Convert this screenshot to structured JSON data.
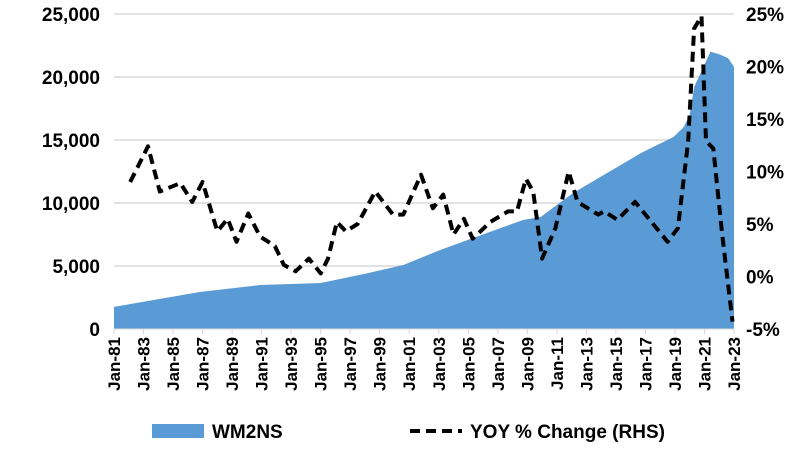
{
  "chart_data": {
    "type": "area",
    "title": "",
    "xlabel": "",
    "ylabel": "",
    "x_ticks": [
      "Jan-81",
      "Jan-83",
      "Jan-85",
      "Jan-87",
      "Jan-89",
      "Jan-91",
      "Jan-93",
      "Jan-95",
      "Jan-97",
      "Jan-99",
      "Jan-01",
      "Jan-03",
      "Jan-05",
      "Jan-07",
      "Jan-09",
      "Jan-11",
      "Jan-13",
      "Jan-15",
      "Jan-17",
      "Jan-19",
      "Jan-21",
      "Jan-23"
    ],
    "xlim": [
      1981,
      2023
    ],
    "y_left": {
      "ylim": [
        0,
        25000
      ],
      "ticks": [
        "0",
        "5,000",
        "10,000",
        "15,000",
        "20,000",
        "25,000"
      ]
    },
    "y_right": {
      "ylim": [
        -5,
        25
      ],
      "ticks": [
        "-5%",
        "0%",
        "5%",
        "10%",
        "15%",
        "20%",
        "25%"
      ]
    },
    "grid": true,
    "legend_position": "bottom",
    "series": [
      {
        "name": "WM2NS",
        "kind": "area",
        "axis": "left",
        "color": "#5b9bd5",
        "x": [
          1981,
          1986.8,
          1990.9,
          1995,
          1998.2,
          2000.6,
          2003.1,
          2008.7,
          2009.9,
          2012.1,
          2016.7,
          2018.9,
          2019.6,
          2020.0,
          2020.3,
          2021.4,
          2022.0,
          2022.6,
          2023
        ],
        "y": [
          1750,
          2940,
          3490,
          3650,
          4440,
          5080,
          6270,
          8650,
          8890,
          10790,
          13970,
          15240,
          16030,
          17000,
          19200,
          22000,
          21800,
          21500,
          20800
        ]
      },
      {
        "name": "YOY % Change (RHS)",
        "kind": "line",
        "axis": "right",
        "color": "#000000",
        "dash": true,
        "x": [
          1982.1,
          1983.3,
          1984.1,
          1985.5,
          1986.3,
          1987.0,
          1988.0,
          1988.7,
          1989.3,
          1990.1,
          1990.9,
          1991.9,
          1992.5,
          1993.3,
          1994.2,
          1995.0,
          1995.5,
          1996.1,
          1996.7,
          1997.5,
          1998.7,
          1999.9,
          2000.6,
          2001.8,
          2002.6,
          2003.3,
          2004.0,
          2004.7,
          2005.3,
          2006.5,
          2007.7,
          2008.3,
          2008.9,
          2009.4,
          2010.0,
          2010.9,
          2011.8,
          2012.4,
          2013.8,
          2014.2,
          2015.1,
          2016.3,
          2018.5,
          2019.2,
          2019.9,
          2020.3,
          2020.8,
          2021.1,
          2021.6,
          2022.2,
          2022.9
        ],
        "y": [
          9.0,
          12.4,
          8.1,
          8.9,
          7.1,
          9.0,
          4.3,
          5.5,
          3.3,
          6.0,
          3.8,
          2.9,
          1.1,
          0.5,
          1.7,
          0.3,
          1.7,
          5.2,
          4.3,
          5.0,
          8.1,
          5.9,
          5.9,
          9.7,
          6.5,
          7.8,
          4.0,
          5.5,
          3.6,
          5.2,
          6.2,
          6.2,
          9.3,
          8.1,
          1.7,
          4.6,
          10.0,
          7.1,
          5.9,
          6.2,
          5.4,
          7.1,
          3.3,
          4.6,
          12.9,
          23.6,
          24.8,
          12.9,
          12.2,
          4.0,
          -4.3
        ]
      }
    ]
  }
}
